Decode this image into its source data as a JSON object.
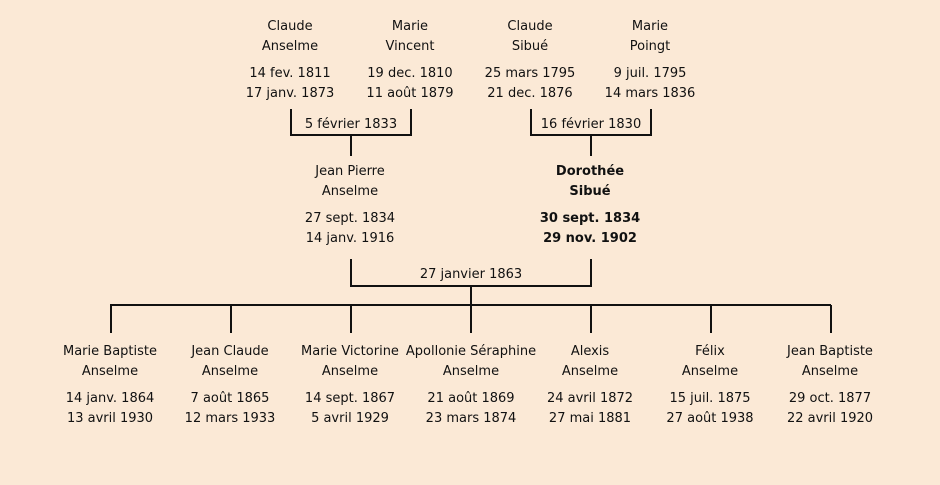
{
  "grandparents": [
    {
      "first": "Claude",
      "last": "Anselme",
      "birth": "14 fev. 1811",
      "death": "17 janv. 1873"
    },
    {
      "first": "Marie",
      "last": "Vincent",
      "birth": "19 dec. 1810",
      "death": "11 août 1879"
    },
    {
      "first": "Claude",
      "last": "Sibué",
      "birth": "25 mars 1795",
      "death": "21 dec. 1876"
    },
    {
      "first": "Marie",
      "last": "Poingt",
      "birth": "9 juil. 1795",
      "death": "14 mars 1836"
    }
  ],
  "grandparent_marriages": [
    "5 février 1833",
    "16 février 1830"
  ],
  "parents": [
    {
      "first": "Jean Pierre",
      "last": "Anselme",
      "birth": "27 sept. 1834",
      "death": "14 janv. 1916"
    },
    {
      "first": "Dorothée",
      "last": "Sibué",
      "birth": "30 sept. 1834",
      "death": "29 nov. 1902"
    }
  ],
  "parent_marriage": "27 janvier 1863",
  "children": [
    {
      "first": "Marie Baptiste",
      "last": "Anselme",
      "birth": "14 janv. 1864",
      "death": "13 avril 1930"
    },
    {
      "first": "Jean Claude",
      "last": "Anselme",
      "birth": "7 août 1865",
      "death": "12 mars 1933"
    },
    {
      "first": "Marie Victorine",
      "last": "Anselme",
      "birth": "14 sept. 1867",
      "death": "5 avril 1929"
    },
    {
      "first": "Apollonie Séraphine",
      "last": "Anselme",
      "birth": "21 août 1869",
      "death": "23 mars 1874"
    },
    {
      "first": "Alexis",
      "last": "Anselme",
      "birth": "24 avril 1872",
      "death": "27 mai 1881"
    },
    {
      "first": "Félix",
      "last": "Anselme",
      "birth": "15 juil. 1875",
      "death": "27 août 1938"
    },
    {
      "first": "Jean Baptiste",
      "last": "Anselme",
      "birth": "29 oct. 1877",
      "death": "22 avril 1920"
    }
  ]
}
